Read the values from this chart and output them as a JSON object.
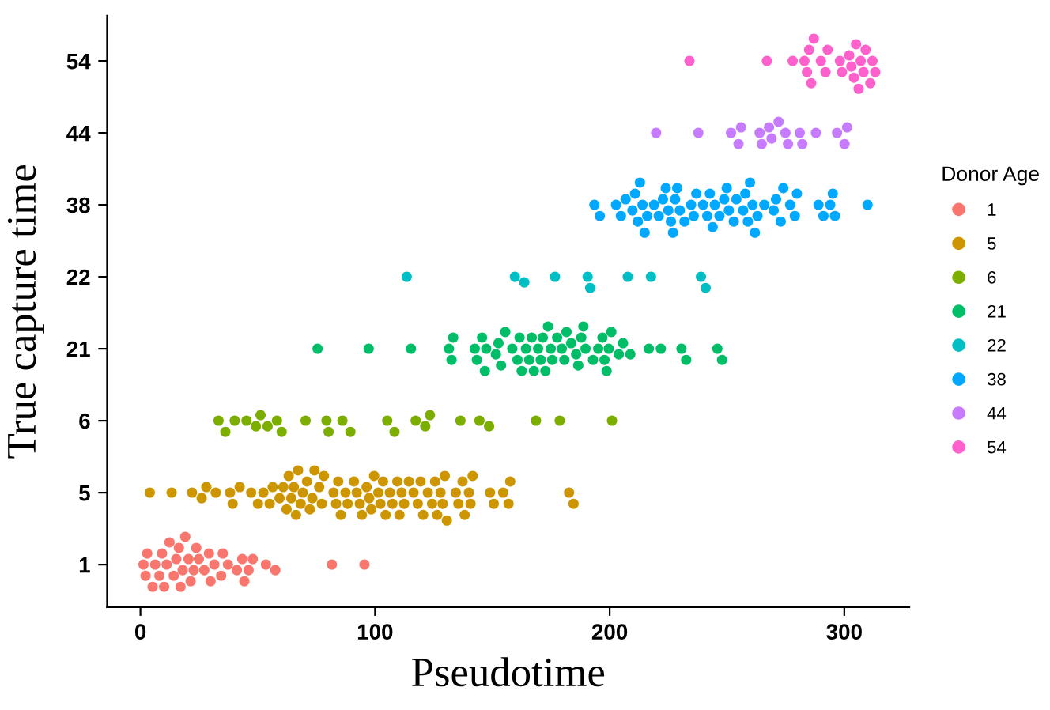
{
  "chart_data": {
    "type": "scatter",
    "orientation": "horizontal",
    "xlabel": "Pseudotime",
    "ylabel": "True capture time",
    "legend_title": "Donor Age",
    "legend": "right",
    "grid": false,
    "marker": "circle",
    "xlim": [
      -14.2,
      327.7
    ],
    "xticks": [
      0,
      100,
      200,
      300
    ],
    "categories": [
      "54",
      "44",
      "38",
      "22",
      "21",
      "6",
      "5",
      "1"
    ],
    "series": [
      {
        "name": "1",
        "color": "#f8766d",
        "x": [
          "1",
          "1",
          "1",
          "1",
          "1",
          "1",
          "1",
          "1",
          "1",
          "1",
          "1",
          "1",
          "1",
          "1",
          "1",
          "1",
          "1",
          "1",
          "1",
          "1",
          "1",
          "1",
          "1",
          "1",
          "1",
          "1",
          "1",
          "1",
          "1",
          "1",
          "1",
          "1",
          "1",
          "1",
          "1",
          "1",
          "1"
        ],
        "values": [
          1.3,
          2.9,
          2.2,
          5.2,
          6.3,
          8.1,
          9.2,
          10.1,
          11.2,
          12.4,
          14.2,
          15.3,
          16.4,
          17.1,
          18.0,
          19.1,
          20.5,
          21.4,
          22.7,
          23.8,
          24.9,
          27.2,
          29.2,
          29.9,
          31.5,
          34.4,
          35.1,
          37.3,
          41.1,
          43.4,
          44.3,
          46.1,
          47.9,
          53.5,
          57.5,
          81.6,
          95.5
        ]
      },
      {
        "name": "5",
        "color": "#cd9600",
        "x": [
          "5",
          "5",
          "5",
          "5",
          "5",
          "5",
          "5",
          "5",
          "5",
          "5",
          "5",
          "5",
          "5",
          "5",
          "5",
          "5",
          "5",
          "5",
          "5",
          "5",
          "5",
          "5",
          "5",
          "5",
          "5",
          "5",
          "5",
          "5",
          "5",
          "5",
          "5",
          "5",
          "5",
          "5",
          "5",
          "5",
          "5",
          "5",
          "5",
          "5",
          "5",
          "5",
          "5",
          "5",
          "5",
          "5",
          "5",
          "5",
          "5",
          "5",
          "5",
          "5",
          "5",
          "5",
          "5",
          "5",
          "5",
          "5",
          "5",
          "5",
          "5",
          "5",
          "5",
          "5",
          "5",
          "5",
          "5",
          "5",
          "5",
          "5",
          "5",
          "5",
          "5",
          "5",
          "5",
          "5",
          "5",
          "5",
          "5",
          "5",
          "5",
          "5"
        ],
        "values": [
          4.0,
          13.3,
          22.0,
          26.1,
          28.1,
          32.1,
          38.2,
          39.3,
          42.3,
          47.2,
          50.1,
          52.4,
          55.1,
          56.4,
          59.3,
          60.9,
          62.3,
          63.2,
          64.3,
          65.4,
          66.3,
          67.2,
          68.3,
          69.2,
          71.0,
          72.2,
          73.3,
          74.2,
          76.2,
          77.3,
          78.2,
          82.3,
          83.4,
          84.3,
          85.4,
          87.4,
          88.3,
          91.0,
          92.2,
          93.5,
          94.4,
          96.4,
          97.5,
          98.4,
          99.6,
          101.4,
          102.3,
          103.4,
          104.5,
          106.3,
          107.4,
          109.5,
          110.4,
          111.3,
          112.4,
          114.4,
          116.4,
          118.2,
          119.4,
          120.5,
          122.5,
          124.3,
          125.6,
          126.5,
          127.9,
          128.8,
          129.7,
          130.6,
          134.4,
          135.5,
          137.3,
          138.2,
          140.0,
          140.7,
          141.6,
          149.0,
          150.6,
          154.6,
          156.9,
          157.6,
          182.7,
          184.6
        ]
      },
      {
        "name": "6",
        "color": "#7cae00",
        "x": [
          "6",
          "6",
          "6",
          "6",
          "6",
          "6",
          "6",
          "6",
          "6",
          "6",
          "6",
          "6",
          "6",
          "6",
          "6",
          "6",
          "6",
          "6",
          "6",
          "6",
          "6",
          "6",
          "6",
          "6",
          "6"
        ],
        "values": [
          33.3,
          36.2,
          40.2,
          45.2,
          49.2,
          51.2,
          54.2,
          58.2,
          60.2,
          70.4,
          79.3,
          80.2,
          86.1,
          89.5,
          105.2,
          108.3,
          117.3,
          121.4,
          123.4,
          136.4,
          144.5,
          148.6,
          168.6,
          178.7,
          201.0
        ]
      },
      {
        "name": "21",
        "color": "#00be67",
        "x": [
          "21",
          "21",
          "21",
          "21",
          "21",
          "21",
          "21",
          "21",
          "21",
          "21",
          "21",
          "21",
          "21",
          "21",
          "21",
          "21",
          "21",
          "21",
          "21",
          "21",
          "21",
          "21",
          "21",
          "21",
          "21",
          "21",
          "21",
          "21",
          "21",
          "21",
          "21",
          "21",
          "21",
          "21",
          "21",
          "21",
          "21",
          "21",
          "21",
          "21",
          "21",
          "21",
          "21",
          "21",
          "21",
          "21",
          "21",
          "21",
          "21",
          "21",
          "21",
          "21",
          "21",
          "21",
          "21",
          "21"
        ],
        "values": [
          75.5,
          97.3,
          115.3,
          131.5,
          132.6,
          133.3,
          142.5,
          143.4,
          145.6,
          146.8,
          147.4,
          151.5,
          152.6,
          153.7,
          155.5,
          158.5,
          160.7,
          161.6,
          162.5,
          164.3,
          165.7,
          166.8,
          167.7,
          169.5,
          170.6,
          171.5,
          172.6,
          173.7,
          174.9,
          175.5,
          177.6,
          179.6,
          180.7,
          181.6,
          183.6,
          185.7,
          186.6,
          187.9,
          188.8,
          189.7,
          192.9,
          195.1,
          196.9,
          197.8,
          198.7,
          199.6,
          200.7,
          203.9,
          205.7,
          208.8,
          216.7,
          221.8,
          230.6,
          232.6,
          245.9,
          247.9
        ]
      },
      {
        "name": "22",
        "color": "#00bfc4",
        "x": [
          "22",
          "22",
          "22",
          "22",
          "22",
          "22",
          "22",
          "22",
          "22",
          "22"
        ],
        "values": [
          113.5,
          159.6,
          163.6,
          176.7,
          190.6,
          191.7,
          207.7,
          217.6,
          238.9,
          240.9
        ]
      },
      {
        "name": "38",
        "color": "#00a9ff",
        "x": [
          "38",
          "38",
          "38",
          "38",
          "38",
          "38",
          "38",
          "38",
          "38",
          "38",
          "38",
          "38",
          "38",
          "38",
          "38",
          "38",
          "38",
          "38",
          "38",
          "38",
          "38",
          "38",
          "38",
          "38",
          "38",
          "38",
          "38",
          "38",
          "38",
          "38",
          "38",
          "38",
          "38",
          "38",
          "38",
          "38",
          "38",
          "38",
          "38",
          "38",
          "38",
          "38",
          "38",
          "38",
          "38",
          "38",
          "38",
          "38",
          "38",
          "38",
          "38",
          "38",
          "38",
          "38",
          "38",
          "38",
          "38",
          "38"
        ],
        "values": [
          193.5,
          195.8,
          202.7,
          204.8,
          206.8,
          209.7,
          210.8,
          212.0,
          212.9,
          214.0,
          214.9,
          216.0,
          218.9,
          220.9,
          222.7,
          223.9,
          225.0,
          226.1,
          227.0,
          227.9,
          228.8,
          229.9,
          231.9,
          234.7,
          235.8,
          236.9,
          239.8,
          241.6,
          242.7,
          243.9,
          244.8,
          246.8,
          248.8,
          249.9,
          250.8,
          252.9,
          254.0,
          256.9,
          257.8,
          258.9,
          259.8,
          260.9,
          261.9,
          263.0,
          265.9,
          269.9,
          270.9,
          272.9,
          274.0,
          276.9,
          278.9,
          279.8,
          289.0,
          291.1,
          294.0,
          295.1,
          296.0,
          309.9
        ]
      },
      {
        "name": "44",
        "color": "#c77cff",
        "x": [
          "44",
          "44",
          "44",
          "44",
          "44",
          "44",
          "44",
          "44",
          "44",
          "44",
          "44",
          "44",
          "44",
          "44",
          "44",
          "44",
          "44",
          "44"
        ],
        "values": [
          219.8,
          237.8,
          251.7,
          254.9,
          256.0,
          263.9,
          264.8,
          267.9,
          269.0,
          272.0,
          274.9,
          276.0,
          281.0,
          282.1,
          287.9,
          296.9,
          300.1,
          301.2
        ]
      },
      {
        "name": "54",
        "color": "#ff61cc",
        "x": [
          "54",
          "54",
          "54",
          "54",
          "54",
          "54",
          "54",
          "54",
          "54",
          "54",
          "54",
          "54",
          "54",
          "54",
          "54",
          "54",
          "54",
          "54",
          "54",
          "54",
          "54",
          "54",
          "54",
          "54"
        ],
        "values": [
          234.0,
          267.0,
          278.0,
          283.0,
          284.1,
          285.0,
          285.9,
          287.0,
          290.0,
          292.0,
          292.9,
          298.1,
          299.0,
          302.1,
          303.0,
          304.1,
          305.0,
          306.1,
          307.0,
          308.2,
          309.1,
          311.1,
          312.0,
          313.2
        ]
      }
    ]
  }
}
